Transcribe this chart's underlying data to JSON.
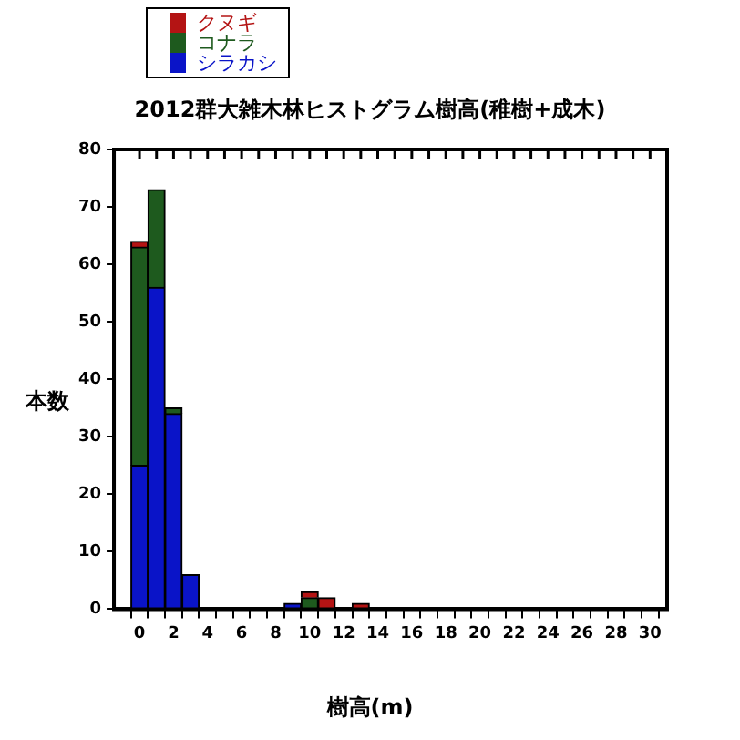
{
  "chart_data": {
    "type": "bar",
    "title": "2012群大雑木林ヒストグラム樹高(稚樹+成木)",
    "xlabel": "樹高(m)",
    "ylabel": "本数",
    "x": [
      0,
      1,
      2,
      3,
      4,
      5,
      6,
      7,
      8,
      9,
      10,
      11,
      12,
      13
    ],
    "stacked": true,
    "series": [
      {
        "name": "シラカシ",
        "color": "#0a14c8",
        "values": [
          25,
          56,
          34,
          6,
          0,
          0,
          0,
          0,
          0,
          1,
          0,
          0,
          0,
          0
        ]
      },
      {
        "name": "コナラ",
        "color": "#1e5a1e",
        "values": [
          38,
          17,
          1,
          0,
          0,
          0,
          0,
          0,
          0,
          0,
          2,
          0,
          0,
          0
        ]
      },
      {
        "name": "クヌギ",
        "color": "#b41414",
        "values": [
          1,
          0,
          0,
          0,
          0,
          0,
          0,
          0,
          0,
          0,
          1,
          2,
          0,
          1
        ]
      }
    ],
    "xlim": [
      -1.5,
      31
    ],
    "ylim": [
      0,
      80
    ],
    "xticks": [
      0,
      {
        "value": 1,
        "label": null
      },
      2,
      {
        "value": 3,
        "label": null
      },
      4,
      {
        "value": 5,
        "label": null
      },
      6,
      {
        "value": 7,
        "label": null
      },
      8,
      {
        "value": 9,
        "label": null
      },
      10,
      {
        "value": 11,
        "label": null
      },
      12,
      {
        "value": 13,
        "label": null
      },
      14,
      {
        "value": 15,
        "label": null
      },
      16,
      {
        "value": 17,
        "label": null
      },
      18,
      {
        "value": 19,
        "label": null
      },
      20,
      {
        "value": 21,
        "label": null
      },
      22,
      {
        "value": 23,
        "label": null
      },
      24,
      {
        "value": 25,
        "label": null
      },
      26,
      {
        "value": 27,
        "label": null
      },
      28,
      {
        "value": 29,
        "label": null
      },
      30
    ],
    "yticks": [
      0,
      10,
      20,
      30,
      40,
      50,
      60,
      70,
      80
    ],
    "grid": false,
    "legend": "top left"
  }
}
